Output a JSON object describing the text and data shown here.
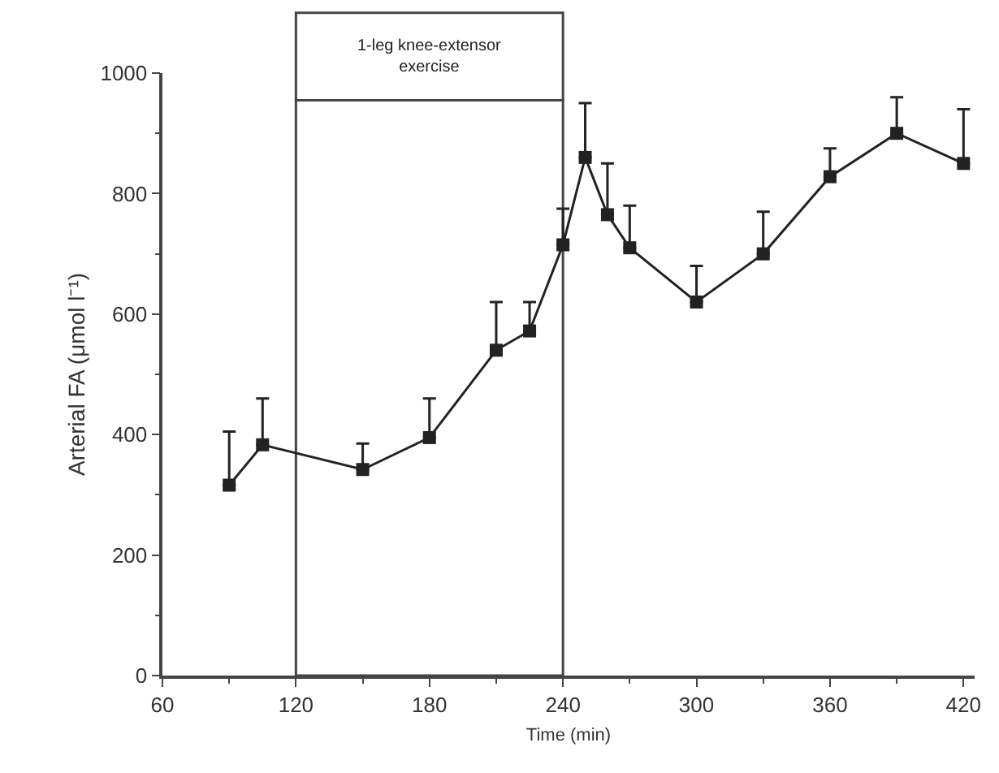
{
  "chart_data": {
    "type": "line",
    "xlabel": "Time (min)",
    "ylabel": "Arterial FA (μmol l⁻¹)",
    "x": [
      90,
      105,
      150,
      180,
      210,
      225,
      240,
      250,
      260,
      270,
      300,
      330,
      360,
      390,
      420
    ],
    "series": [
      {
        "color": "#222222",
        "values": [
          316,
          383,
          342,
          395,
          540,
          572,
          715,
          860,
          765,
          710,
          620,
          700,
          828,
          900,
          850
        ],
        "errors": [
          [
            316,
            405
          ],
          [
            383,
            460
          ],
          [
            342,
            385
          ],
          [
            395,
            460
          ],
          [
            540,
            620
          ],
          [
            572,
            620
          ],
          [
            715,
            775
          ],
          [
            860,
            950
          ],
          [
            765,
            850
          ],
          [
            710,
            780
          ],
          [
            620,
            680
          ],
          [
            700,
            770
          ],
          [
            828,
            875
          ],
          [
            900,
            960
          ],
          [
            850,
            940
          ]
        ]
      }
    ],
    "marker": "square",
    "line_style": "solid",
    "xlim": [
      60,
      425
    ],
    "ylim": [
      0,
      1000
    ],
    "xticks": [
      60,
      120,
      180,
      240,
      300,
      360,
      420
    ],
    "yticks": [
      0,
      200,
      400,
      600,
      800,
      1000
    ],
    "bands": [
      {
        "axis": "x",
        "from": 120,
        "to": 240,
        "label": "1-leg knee-extensor\nexercise",
        "color": "#ffffff"
      }
    ],
    "grid": false,
    "legend": false
  }
}
